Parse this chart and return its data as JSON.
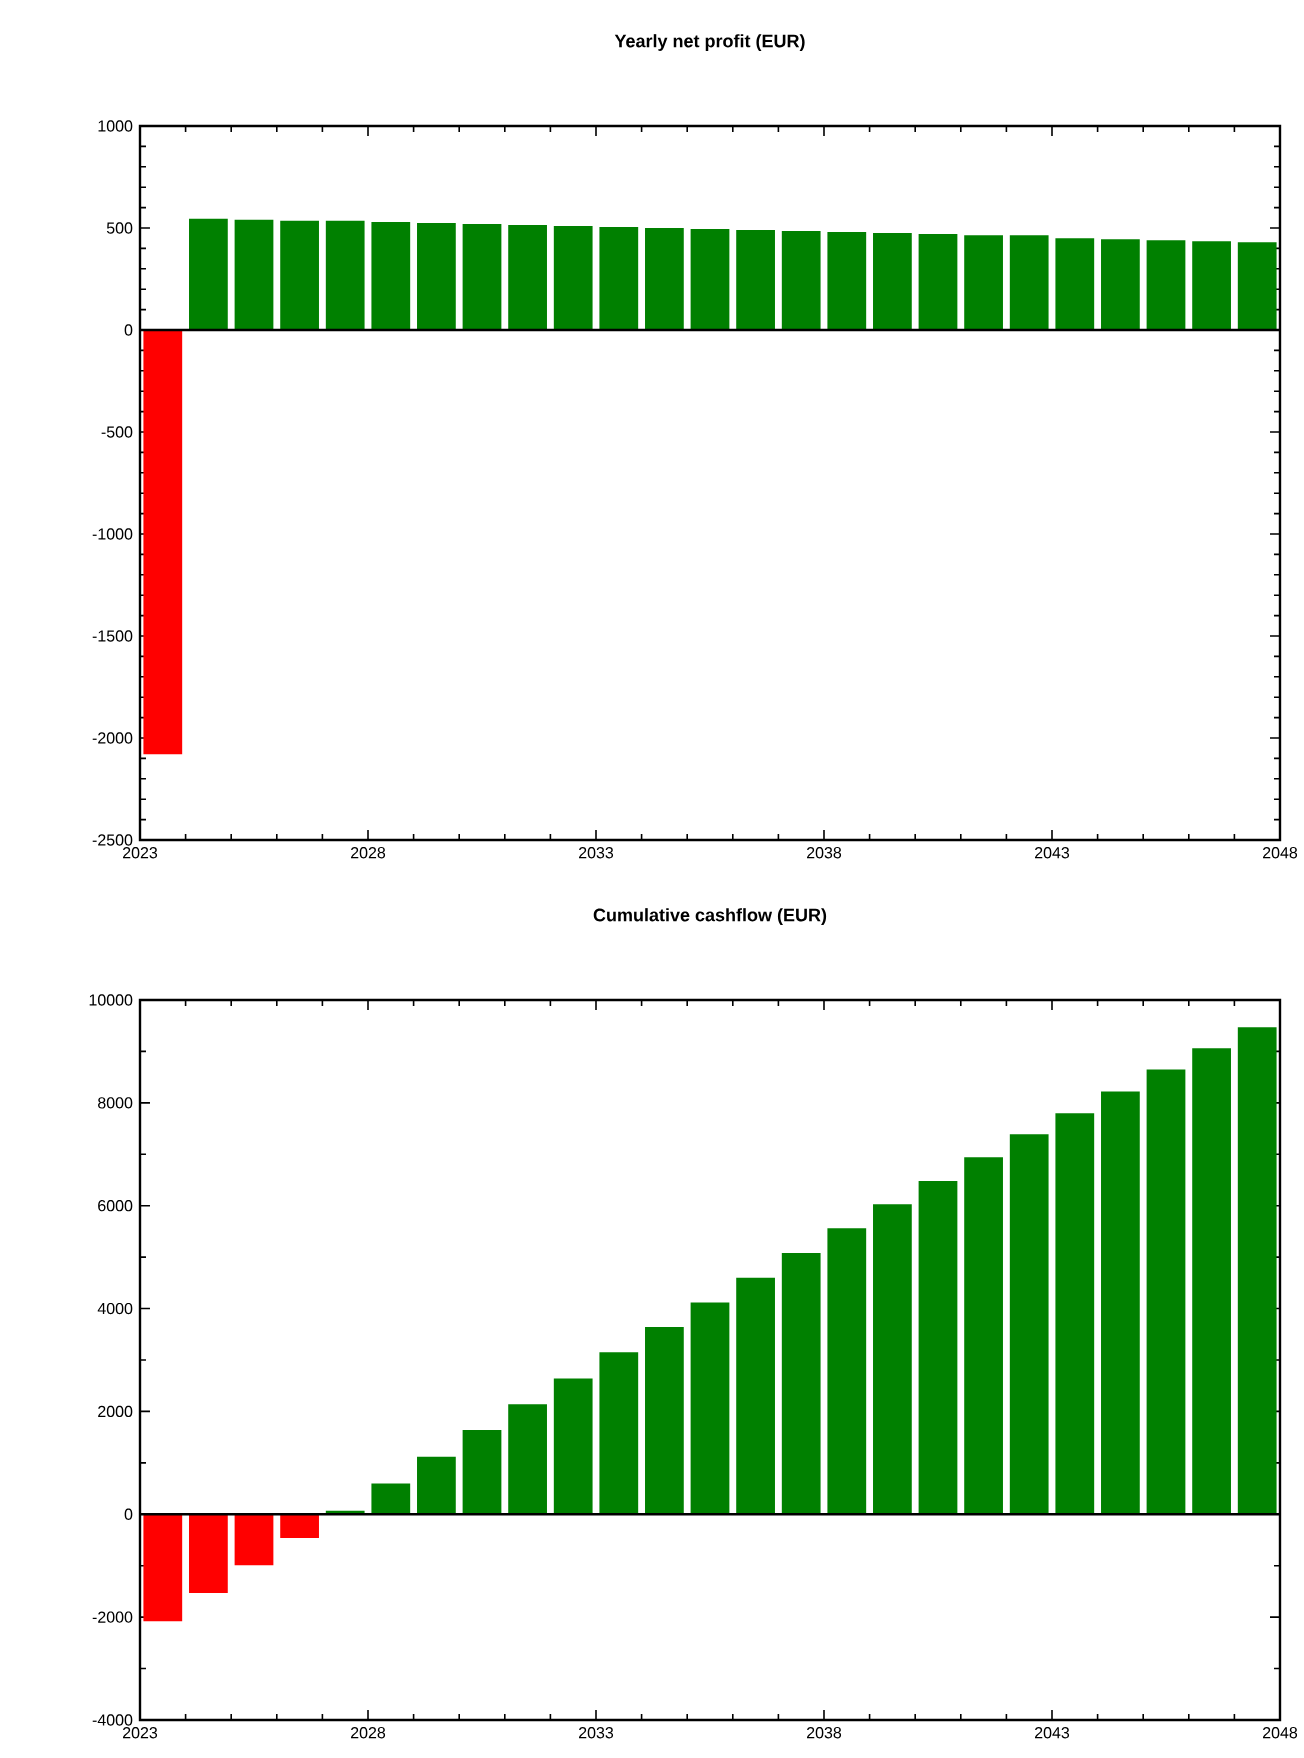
{
  "chart_data": [
    {
      "type": "bar",
      "title": "Yearly net profit (EUR)",
      "x": [
        2023.5,
        2024.5,
        2025.5,
        2026.5,
        2027.5,
        2028.5,
        2029.5,
        2030.5,
        2031.5,
        2032.5,
        2033.5,
        2034.5,
        2035.5,
        2036.5,
        2037.5,
        2038.5,
        2039.5,
        2040.5,
        2041.5,
        2042.5,
        2043.5,
        2044.5,
        2045.5,
        2046.5,
        2047.5
      ],
      "values": [
        -2080,
        545,
        540,
        535,
        535,
        530,
        525,
        520,
        515,
        510,
        505,
        500,
        495,
        490,
        485,
        480,
        475,
        470,
        465,
        465,
        450,
        445,
        440,
        435,
        430
      ],
      "colors": [
        "#ff0000",
        "#008000",
        "#008000",
        "#008000",
        "#008000",
        "#008000",
        "#008000",
        "#008000",
        "#008000",
        "#008000",
        "#008000",
        "#008000",
        "#008000",
        "#008000",
        "#008000",
        "#008000",
        "#008000",
        "#008000",
        "#008000",
        "#008000",
        "#008000",
        "#008000",
        "#008000",
        "#008000",
        "#008000"
      ],
      "xlim": [
        2023,
        2048
      ],
      "xticks": [
        2023,
        2028,
        2033,
        2038,
        2043,
        2048
      ],
      "ylim": [
        -2500,
        1000
      ],
      "yticks": [
        -2500,
        -2000,
        -1500,
        -1000,
        -500,
        0,
        500,
        1000
      ],
      "ref_lines": [
        {
          "axis": "y",
          "value": 0,
          "color": "#000000"
        }
      ]
    },
    {
      "type": "bar",
      "title": "Cumulative cashflow (EUR)",
      "x": [
        2023.5,
        2024.5,
        2025.5,
        2026.5,
        2027.5,
        2028.5,
        2029.5,
        2030.5,
        2031.5,
        2032.5,
        2033.5,
        2034.5,
        2035.5,
        2036.5,
        2037.5,
        2038.5,
        2039.5,
        2040.5,
        2041.5,
        2042.5,
        2043.5,
        2044.5,
        2045.5,
        2046.5,
        2047.5
      ],
      "values": [
        -2080,
        -1530,
        -990,
        -460,
        70,
        600,
        1120,
        1640,
        2140,
        2640,
        3150,
        3640,
        4120,
        4600,
        5080,
        5560,
        6030,
        6480,
        6940,
        7390,
        7800,
        8220,
        8650,
        9060,
        9470
      ],
      "colors": [
        "#ff0000",
        "#ff0000",
        "#ff0000",
        "#ff0000",
        "#008000",
        "#008000",
        "#008000",
        "#008000",
        "#008000",
        "#008000",
        "#008000",
        "#008000",
        "#008000",
        "#008000",
        "#008000",
        "#008000",
        "#008000",
        "#008000",
        "#008000",
        "#008000",
        "#008000",
        "#008000",
        "#008000",
        "#008000",
        "#008000"
      ],
      "xlim": [
        2023,
        2048
      ],
      "xticks": [
        2023,
        2028,
        2033,
        2038,
        2043,
        2048
      ],
      "ylim": [
        -4000,
        10000
      ],
      "yticks": [
        -4000,
        -2000,
        0,
        2000,
        4000,
        6000,
        8000,
        10000
      ],
      "ref_lines": [
        {
          "axis": "y",
          "value": 0,
          "color": "#000000"
        }
      ]
    }
  ]
}
